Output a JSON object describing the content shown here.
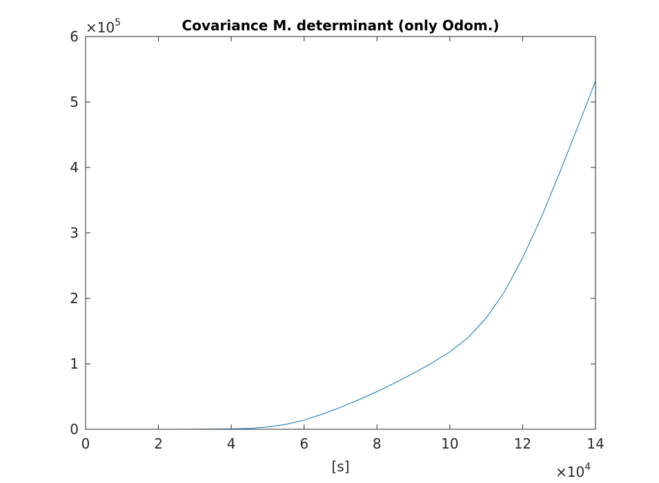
{
  "chart_data": {
    "type": "line",
    "title": "Covariance M. determinant (only Odom.)",
    "xlabel": "[s]",
    "ylabel": "",
    "x_multiplier": {
      "base": "×10",
      "exponent": "4"
    },
    "y_multiplier": {
      "base": "×10",
      "exponent": "5"
    },
    "xlim": [
      0,
      140000
    ],
    "ylim": [
      0,
      600000
    ],
    "x_ticks": [
      0,
      20000,
      40000,
      60000,
      80000,
      100000,
      120000,
      140000
    ],
    "x_tick_labels": [
      "0",
      "2",
      "4",
      "6",
      "8",
      "10",
      "12",
      "14"
    ],
    "y_ticks": [
      0,
      100000,
      200000,
      300000,
      400000,
      500000,
      600000
    ],
    "y_tick_labels": [
      "0",
      "1",
      "2",
      "3",
      "4",
      "5",
      "6"
    ],
    "grid": false,
    "series": [
      {
        "color": "#0072BD",
        "x": [
          0,
          10000,
          20000,
          30000,
          40000,
          45000,
          50000,
          55000,
          60000,
          65000,
          70000,
          75000,
          80000,
          85000,
          90000,
          95000,
          100000,
          105000,
          110000,
          115000,
          120000,
          125000,
          130000,
          135000,
          140000
        ],
        "y": [
          0,
          0,
          0,
          100,
          500,
          1200,
          3500,
          7500,
          14000,
          23000,
          33500,
          45000,
          57500,
          71000,
          85500,
          101000,
          118000,
          140000,
          170000,
          210000,
          262000,
          322000,
          390000,
          460000,
          532000
        ]
      }
    ]
  }
}
